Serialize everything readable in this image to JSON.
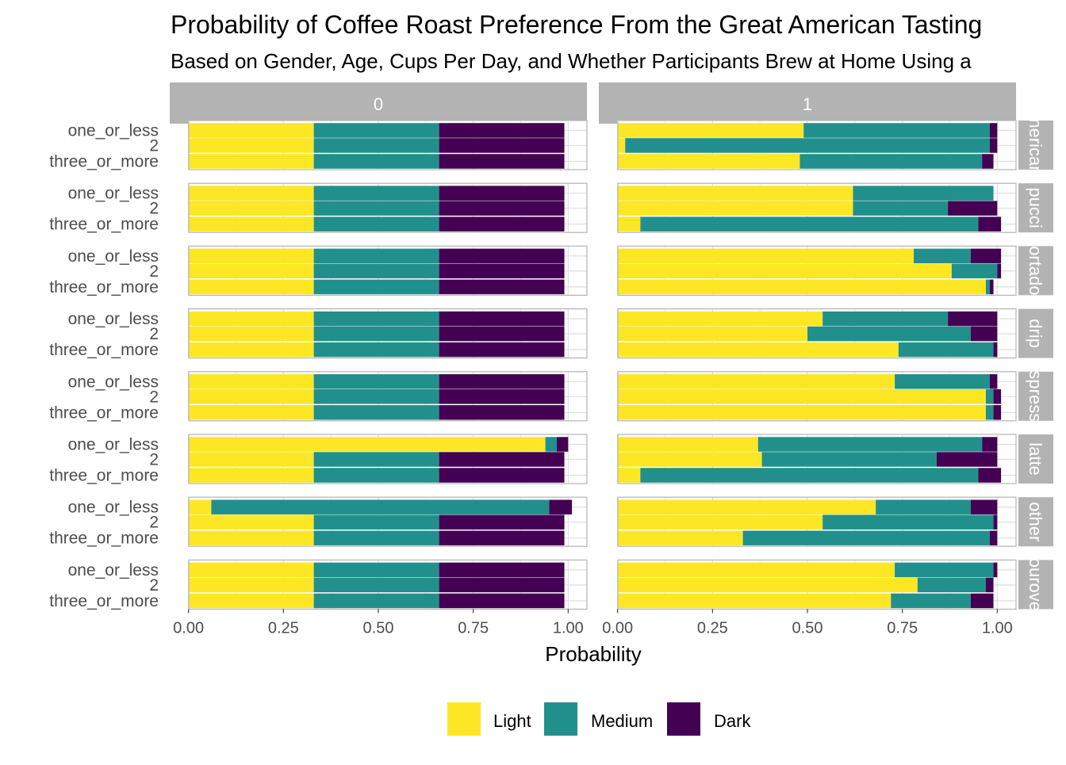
{
  "chart_data": {
    "type": "bar",
    "orientation": "horizontal",
    "stacked": true,
    "title": "Probability of Coffee Roast Preference From the Great American Tasting",
    "subtitle": "Based on Gender, Age, Cups Per Day, and Whether Participants Brew at Home Using a",
    "xlabel": "Probability",
    "ylabel": "",
    "xlim": [
      0,
      1
    ],
    "x_ticks": [
      0,
      0.25,
      0.5,
      0.75,
      1
    ],
    "x_tick_labels": [
      "0.00",
      "0.25",
      "0.50",
      "0.75",
      "1.00"
    ],
    "categories": [
      "one_or_less",
      "2",
      "three_or_more"
    ],
    "facet_columns": [
      "0",
      "1"
    ],
    "facet_rows": [
      "nericar",
      "pucci",
      "ortado",
      "drip",
      "spress",
      "latte",
      "other",
      "ourove"
    ],
    "legend": {
      "position": "bottom",
      "entries": [
        "Light",
        "Medium",
        "Dark"
      ]
    },
    "colors": {
      "Light": "#FDE725",
      "Medium": "#21908C",
      "Dark": "#440154"
    },
    "grid": true,
    "panels": [
      {
        "row": 0,
        "col": 0,
        "bars": [
          [
            0.33,
            0.33,
            0.33
          ],
          [
            0.33,
            0.33,
            0.33
          ],
          [
            0.33,
            0.33,
            0.33
          ]
        ]
      },
      {
        "row": 0,
        "col": 1,
        "bars": [
          [
            0.49,
            0.49,
            0.02
          ],
          [
            0.02,
            0.96,
            0.02
          ],
          [
            0.48,
            0.48,
            0.03
          ]
        ]
      },
      {
        "row": 1,
        "col": 0,
        "bars": [
          [
            0.33,
            0.33,
            0.33
          ],
          [
            0.33,
            0.33,
            0.33
          ],
          [
            0.33,
            0.33,
            0.33
          ]
        ]
      },
      {
        "row": 1,
        "col": 1,
        "bars": [
          [
            0.62,
            0.37,
            0.0
          ],
          [
            0.62,
            0.25,
            0.13
          ],
          [
            0.06,
            0.89,
            0.06
          ]
        ]
      },
      {
        "row": 2,
        "col": 0,
        "bars": [
          [
            0.33,
            0.33,
            0.33
          ],
          [
            0.33,
            0.33,
            0.33
          ],
          [
            0.33,
            0.33,
            0.33
          ]
        ]
      },
      {
        "row": 2,
        "col": 1,
        "bars": [
          [
            0.78,
            0.15,
            0.08
          ],
          [
            0.88,
            0.12,
            0.01
          ],
          [
            0.97,
            0.01,
            0.01
          ]
        ]
      },
      {
        "row": 3,
        "col": 0,
        "bars": [
          [
            0.33,
            0.33,
            0.33
          ],
          [
            0.33,
            0.33,
            0.33
          ],
          [
            0.33,
            0.33,
            0.33
          ]
        ]
      },
      {
        "row": 3,
        "col": 1,
        "bars": [
          [
            0.54,
            0.33,
            0.13
          ],
          [
            0.5,
            0.43,
            0.07
          ],
          [
            0.74,
            0.25,
            0.01
          ]
        ]
      },
      {
        "row": 4,
        "col": 0,
        "bars": [
          [
            0.33,
            0.33,
            0.33
          ],
          [
            0.33,
            0.33,
            0.33
          ],
          [
            0.33,
            0.33,
            0.33
          ]
        ]
      },
      {
        "row": 4,
        "col": 1,
        "bars": [
          [
            0.73,
            0.25,
            0.02
          ],
          [
            0.97,
            0.02,
            0.02
          ],
          [
            0.97,
            0.02,
            0.02
          ]
        ]
      },
      {
        "row": 5,
        "col": 0,
        "bars": [
          [
            0.94,
            0.03,
            0.03
          ],
          [
            0.33,
            0.33,
            0.33
          ],
          [
            0.33,
            0.33,
            0.33
          ]
        ]
      },
      {
        "row": 5,
        "col": 1,
        "bars": [
          [
            0.37,
            0.59,
            0.04
          ],
          [
            0.38,
            0.46,
            0.16
          ],
          [
            0.06,
            0.89,
            0.06
          ]
        ]
      },
      {
        "row": 6,
        "col": 0,
        "bars": [
          [
            0.06,
            0.89,
            0.06
          ],
          [
            0.33,
            0.33,
            0.33
          ],
          [
            0.33,
            0.33,
            0.33
          ]
        ]
      },
      {
        "row": 6,
        "col": 1,
        "bars": [
          [
            0.68,
            0.25,
            0.07
          ],
          [
            0.54,
            0.45,
            0.01
          ],
          [
            0.33,
            0.65,
            0.02
          ]
        ]
      },
      {
        "row": 7,
        "col": 0,
        "bars": [
          [
            0.33,
            0.33,
            0.33
          ],
          [
            0.33,
            0.33,
            0.33
          ],
          [
            0.33,
            0.33,
            0.33
          ]
        ]
      },
      {
        "row": 7,
        "col": 1,
        "bars": [
          [
            0.73,
            0.26,
            0.01
          ],
          [
            0.79,
            0.18,
            0.02
          ],
          [
            0.72,
            0.21,
            0.06
          ]
        ]
      }
    ]
  }
}
